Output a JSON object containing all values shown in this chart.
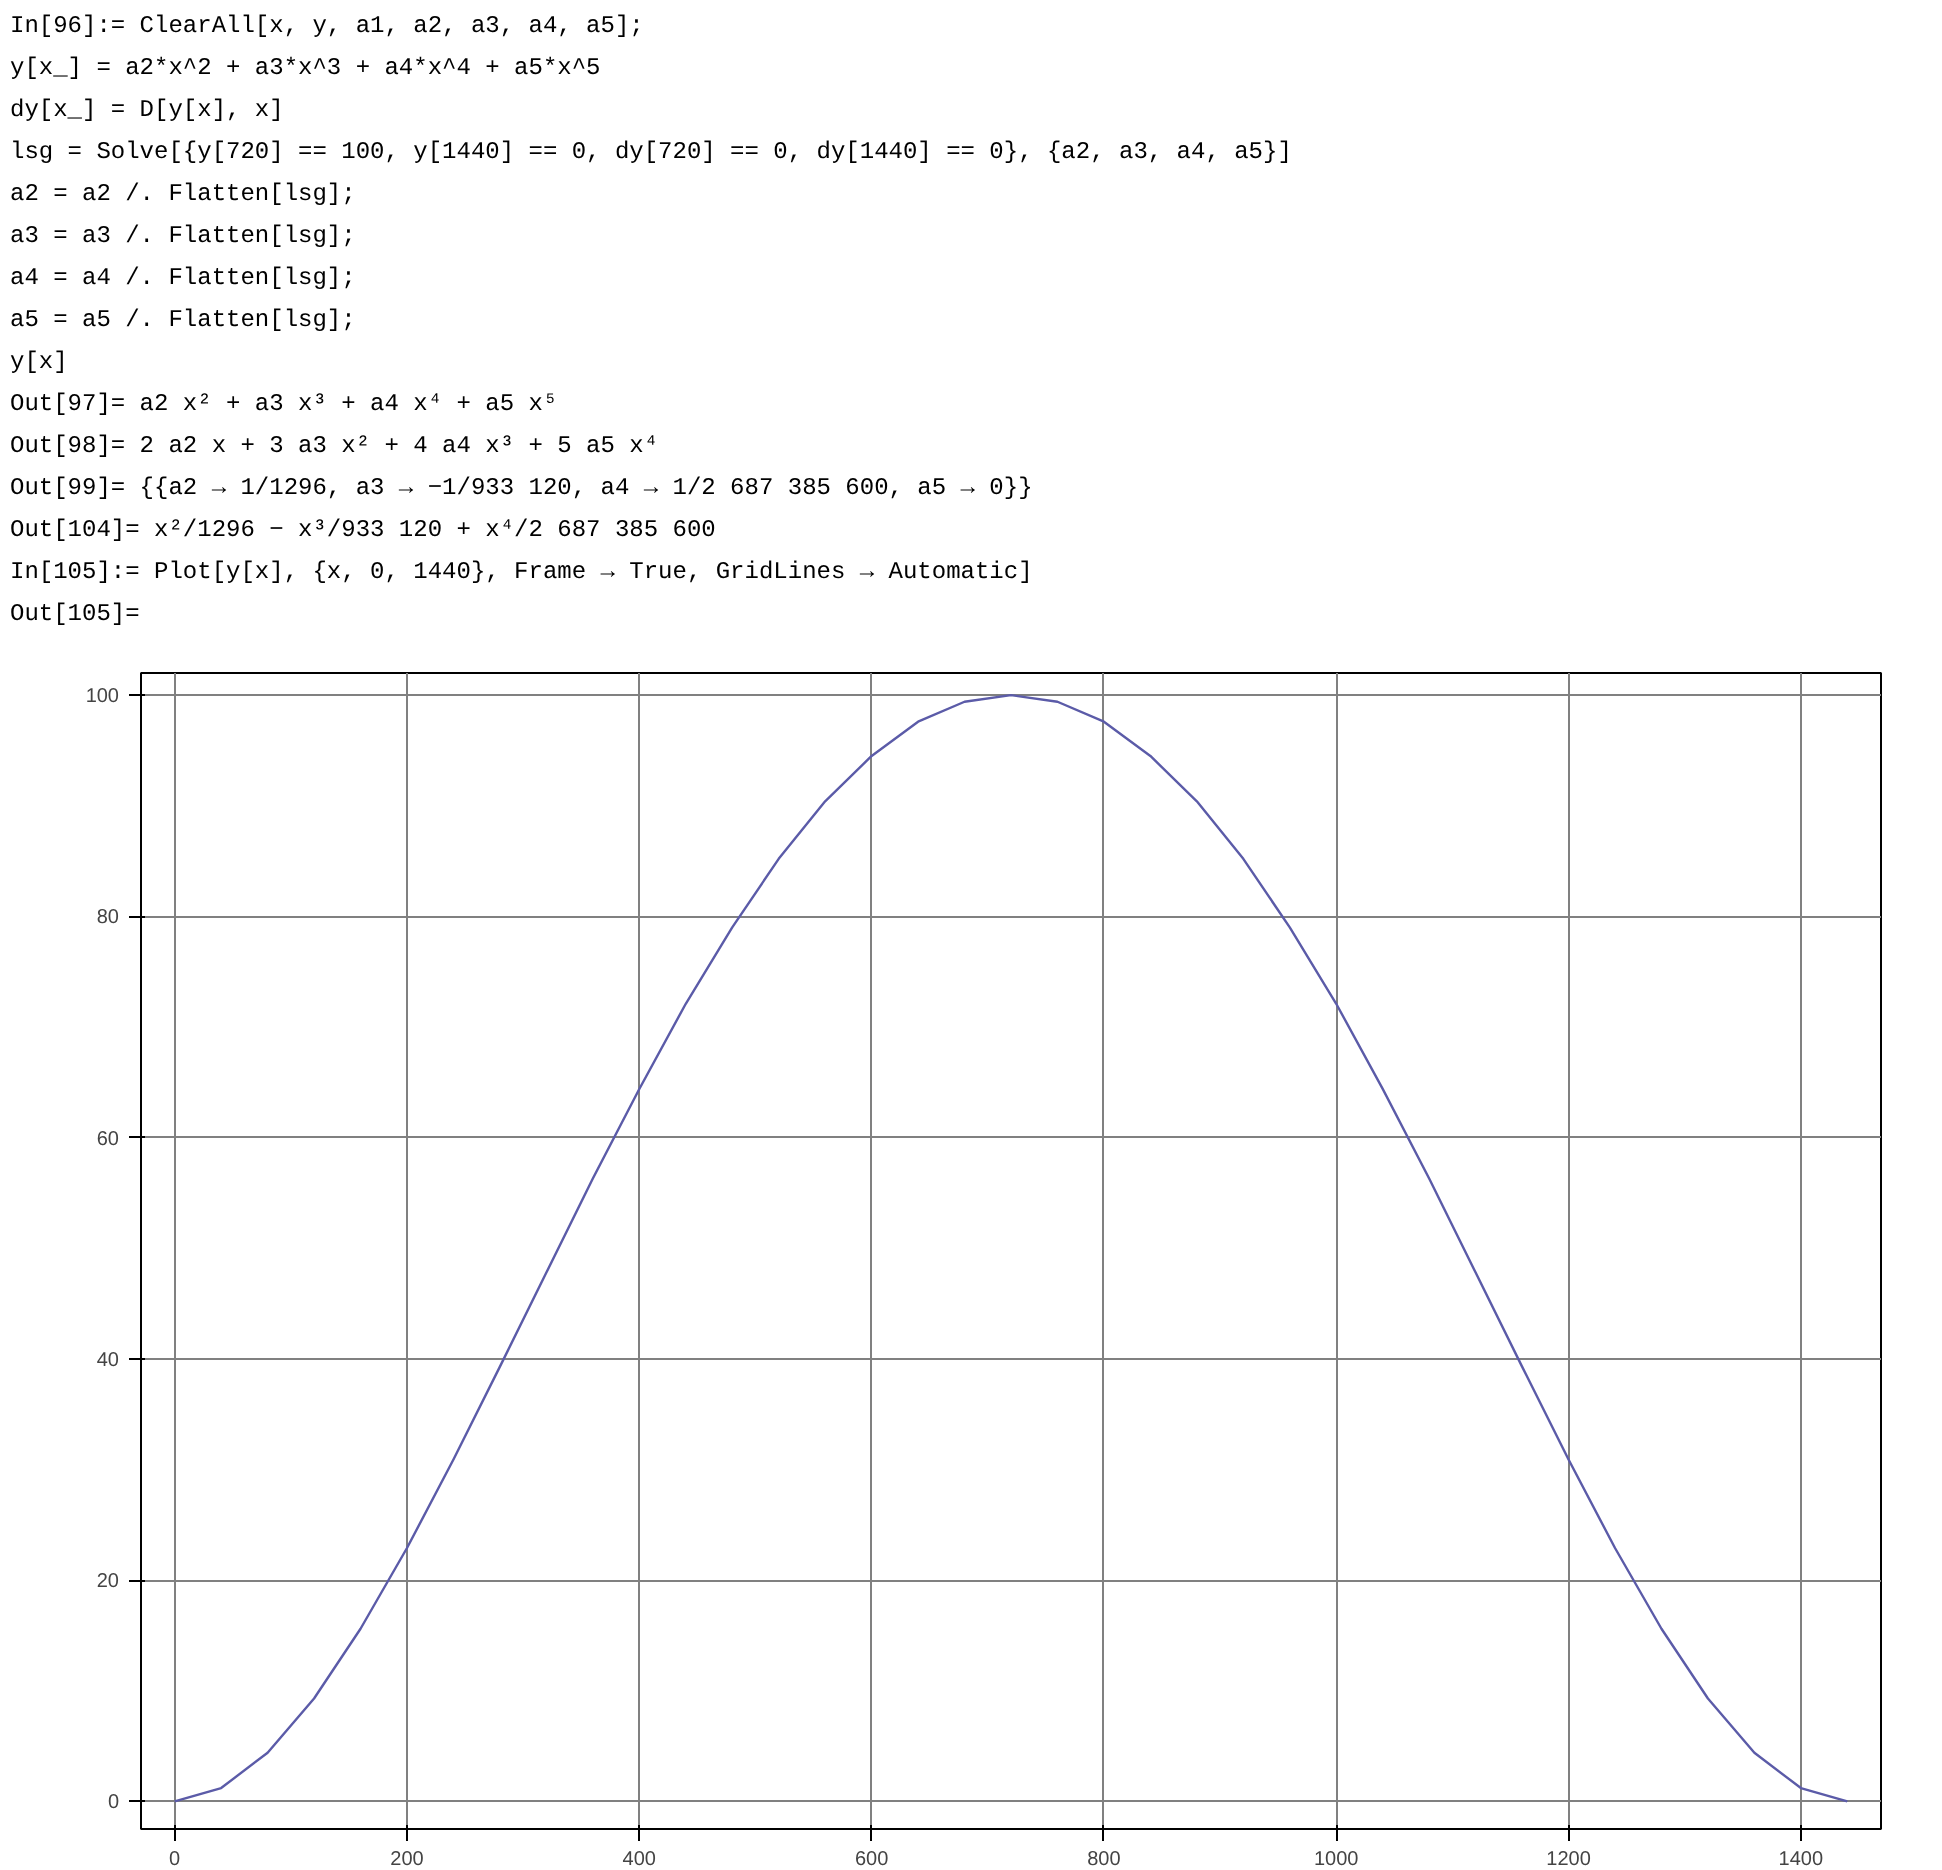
{
  "chart_data": {
    "type": "line",
    "annotations": [
      "In[96]:= ClearAll[x, y, a1, a2, a3, a4, a5];",
      "y[x_] = a2*x^2 + a3*x^3 + a4*x^4 + a5*x^5",
      "dy[x_] = D[y[x], x]",
      "lsg = Solve[{y[720] == 100, y[1440] == 0, dy[720] == 0, dy[1440] == 0}, {a2, a3, a4, a5}]",
      "a2 = a2 /. Flatten[lsg];",
      "a3 = a3 /. Flatten[lsg];",
      "a4 = a4 /. Flatten[lsg];",
      "a5 = a5 /. Flatten[lsg];",
      "y[x]",
      "Out[97]= a2 x² + a3 x³ + a4 x⁴ + a5 x⁵",
      "Out[98]= 2 a2 x + 3 a3 x² + 4 a4 x³ + 5 a5 x⁴",
      "Out[99]= {{a2 → 1/1296, a3 → −1/933 120, a4 → 1/2 687 385 600, a5 → 0}}",
      "Out[104]= x²/1296 − x³/933 120 + x⁴/2 687 385 600",
      "In[105]:= Plot[y[x], {x, 0, 1440}, Frame → True, GridLines → Automatic]",
      "Out[105]="
    ],
    "x": [
      0,
      40,
      80,
      120,
      160,
      200,
      240,
      280,
      320,
      360,
      400,
      440,
      480,
      520,
      560,
      600,
      640,
      680,
      720,
      760,
      800,
      840,
      880,
      920,
      960,
      1000,
      1040,
      1080,
      1120,
      1160,
      1200,
      1240,
      1280,
      1320,
      1360,
      1400,
      1440
    ],
    "series": [
      {
        "color": "#5b5ba8",
        "values": [
          0,
          1.2,
          4.4,
          9.3,
          15.6,
          22.9,
          30.9,
          39.3,
          47.8,
          56.3,
          64.4,
          72.1,
          79.0,
          85.2,
          90.4,
          94.5,
          97.6,
          99.4,
          100,
          99.4,
          97.6,
          94.5,
          90.4,
          85.2,
          79.0,
          72.1,
          64.4,
          56.3,
          47.8,
          39.3,
          30.9,
          22.9,
          15.6,
          9.3,
          4.4,
          1.2,
          0
        ]
      }
    ],
    "xlim": [
      -29,
      1469
    ],
    "ylim": [
      -2.5,
      102
    ],
    "xticks": [
      0,
      200,
      400,
      600,
      800,
      1000,
      1200,
      1400
    ],
    "yticks": [
      0,
      20,
      40,
      60,
      80,
      100
    ],
    "grid": true,
    "marker": "none",
    "line_style": "solid"
  }
}
